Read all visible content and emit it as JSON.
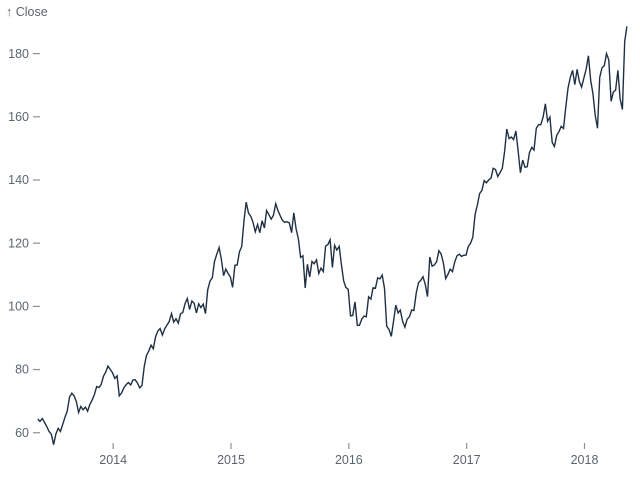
{
  "chart_data": {
    "type": "line",
    "title": "",
    "subtitle": "",
    "y_axis_label": "↑ Close",
    "ylabel": "Close",
    "xlabel": "",
    "x_ticks": [
      2014,
      2015,
      2016,
      2017,
      2018
    ],
    "x_tick_labels": [
      "2014",
      "2015",
      "2016",
      "2017",
      "2018"
    ],
    "y_ticks": [
      60,
      80,
      100,
      120,
      140,
      160,
      180
    ],
    "x_domain": [
      2013.345,
      2018.42
    ],
    "y_domain": [
      55.8,
      190
    ],
    "grid": false,
    "legend": "none",
    "colors": {
      "line": "#1f3044",
      "axis_text": "#5b6571",
      "tick_mark": "#8a9199",
      "background": "#ffffff"
    },
    "series": [
      {
        "name": "Close",
        "start_x": 2013.36,
        "step_x": 0.019231,
        "values": [
          64.3,
          63.6,
          64.5,
          63.2,
          61.9,
          60.4,
          59.5,
          56.2,
          59.6,
          61.4,
          60.4,
          62.6,
          64.9,
          66.8,
          71.2,
          72.5,
          71.7,
          69.9,
          66.4,
          68.3,
          67.3,
          68.1,
          66.8,
          69.0,
          70.4,
          72.1,
          74.6,
          74.3,
          75.3,
          77.9,
          79.2,
          81.1,
          80.0,
          79.0,
          77.2,
          78.0,
          71.7,
          72.6,
          74.2,
          75.2,
          75.9,
          75.1,
          76.7,
          76.8,
          75.7,
          74.2,
          75.0,
          81.1,
          84.5,
          85.9,
          87.7,
          86.6,
          90.4,
          92.2,
          93.0,
          90.9,
          92.9,
          94.0,
          95.2,
          97.7,
          95.0,
          96.1,
          94.7,
          97.6,
          98.1,
          100.9,
          102.5,
          99.0,
          101.7,
          101.0,
          97.9,
          100.8,
          99.6,
          100.7,
          97.7,
          105.2,
          108.0,
          109.0,
          114.2,
          116.5,
          118.6,
          115.0,
          109.7,
          111.8,
          110.4,
          109.3,
          106.0,
          113.0,
          113.1,
          117.2,
          118.9,
          127.1,
          133.0,
          129.5,
          128.5,
          126.6,
          123.6,
          125.9,
          123.3,
          127.1,
          124.8,
          130.3,
          129.0,
          127.6,
          128.8,
          132.5,
          130.3,
          128.7,
          127.2,
          126.6,
          126.8,
          126.4,
          123.3,
          129.6,
          124.5,
          121.3,
          115.5,
          116.0,
          105.8,
          113.3,
          109.3,
          114.2,
          113.5,
          114.7,
          110.4,
          112.1,
          111.0,
          119.1,
          119.5,
          121.1,
          112.3,
          119.3,
          117.8,
          119.0,
          113.2,
          108.0,
          106.0,
          105.4,
          97.0,
          97.1,
          101.4,
          94.0,
          94.0,
          96.0,
          96.9,
          96.7,
          103.0,
          102.3,
          105.9,
          105.7,
          109.0,
          108.7,
          109.9,
          105.7,
          93.7,
          92.7,
          90.5,
          95.2,
          100.4,
          97.9,
          98.8,
          95.3,
          93.4,
          95.9,
          96.7,
          98.8,
          98.7,
          104.2,
          107.5,
          108.2,
          109.4,
          106.9,
          103.1,
          115.6,
          112.7,
          113.1,
          114.1,
          117.6,
          116.6,
          113.7,
          108.8,
          110.1,
          111.8,
          111.0,
          114.0,
          116.0,
          116.5,
          115.8,
          116.2,
          116.2,
          119.0,
          120.0,
          121.9,
          129.1,
          132.1,
          135.7,
          136.7,
          139.8,
          139.1,
          140.0,
          140.6,
          143.7,
          143.3,
          141.1,
          142.3,
          143.7,
          149.0,
          156.1,
          153.1,
          153.6,
          152.8,
          155.5,
          149.0,
          142.3,
          146.3,
          144.0,
          144.2,
          148.7,
          150.3,
          149.5,
          156.4,
          157.5,
          157.5,
          159.9,
          164.1,
          158.6,
          159.9,
          151.9,
          150.6,
          154.1,
          155.3,
          157.0,
          156.3,
          163.1,
          169.0,
          172.5,
          174.7,
          170.2,
          175.0,
          171.1,
          169.4,
          172.3,
          175.0,
          179.3,
          171.5,
          167.4,
          160.5,
          156.4,
          172.4,
          175.5,
          176.2,
          180.0,
          178.0,
          164.9,
          167.8,
          168.4,
          174.7,
          165.7,
          162.3,
          183.8,
          188.6
        ]
      }
    ]
  }
}
